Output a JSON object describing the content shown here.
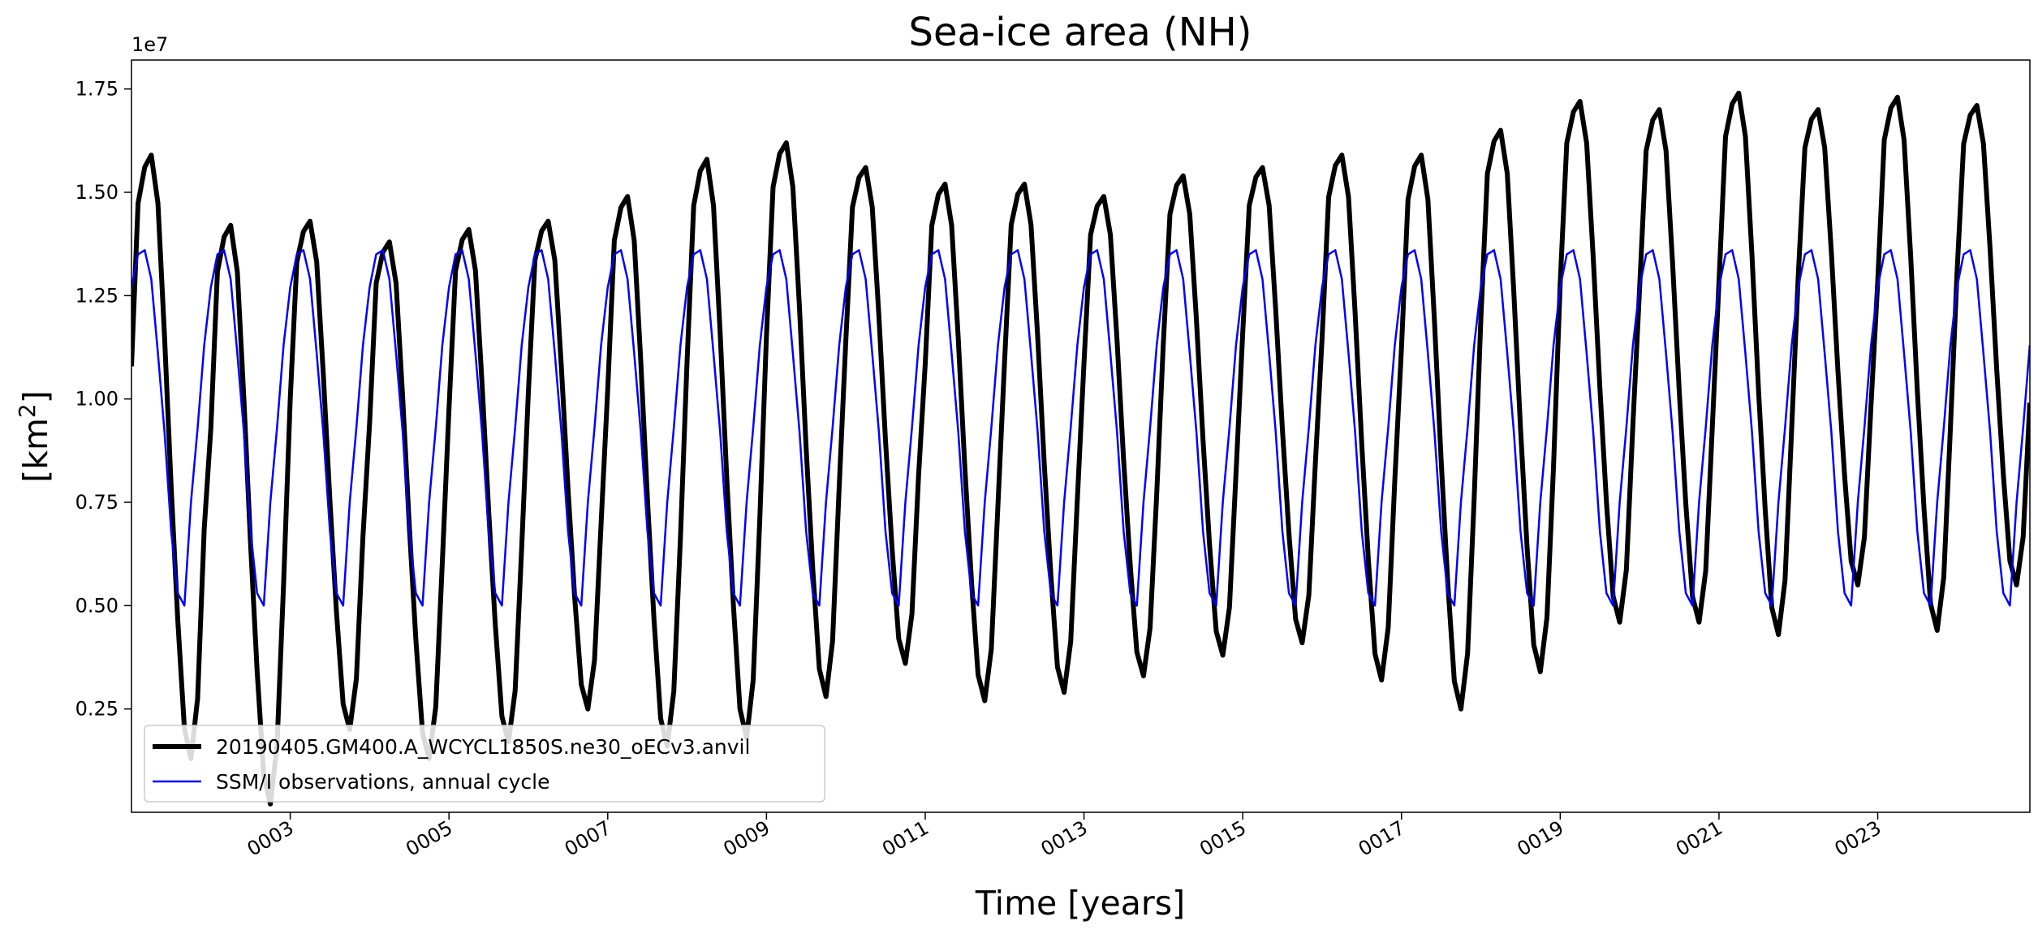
{
  "chart_data": {
    "type": "line",
    "title": "Sea-ice area (NH)",
    "xlabel": "Time [years]",
    "ylabel_main": "[km",
    "ylabel_sup": "2",
    "ylabel_close": "]",
    "y_offset_label": "1e7",
    "y_scale": 10000000,
    "xlim": [
      1.0,
      24.917
    ],
    "ylim": [
      0.0,
      1.82
    ],
    "grid": false,
    "legend_position": "lower-left",
    "x_ticks": [
      {
        "value": 3,
        "label": "0003"
      },
      {
        "value": 5,
        "label": "0005"
      },
      {
        "value": 7,
        "label": "0007"
      },
      {
        "value": 9,
        "label": "0009"
      },
      {
        "value": 11,
        "label": "0011"
      },
      {
        "value": 13,
        "label": "0013"
      },
      {
        "value": 15,
        "label": "0015"
      },
      {
        "value": 17,
        "label": "0017"
      },
      {
        "value": 19,
        "label": "0019"
      },
      {
        "value": 21,
        "label": "0021"
      },
      {
        "value": 23,
        "label": "0023"
      }
    ],
    "y_ticks": [
      {
        "value": 0.25,
        "label": "0.25"
      },
      {
        "value": 0.5,
        "label": "0.50"
      },
      {
        "value": 0.75,
        "label": "0.75"
      },
      {
        "value": 1.0,
        "label": "1.00"
      },
      {
        "value": 1.25,
        "label": "1.25"
      },
      {
        "value": 1.5,
        "label": "1.50"
      },
      {
        "value": 1.75,
        "label": "1.75"
      }
    ],
    "series": [
      {
        "name": "20190405.GM400.A_WCYCL1850S.ne30_oECv3.anvil",
        "color": "#000000",
        "x_start": 1.0,
        "x_step": 0.08333,
        "yearly_max": [
          1.59,
          1.42,
          1.43,
          1.38,
          1.41,
          1.43,
          1.49,
          1.58,
          1.62,
          1.56,
          1.52,
          1.52,
          1.49,
          1.54,
          1.56,
          1.59,
          1.59,
          1.65,
          1.72,
          1.7,
          1.74,
          1.7,
          1.73,
          1.71
        ],
        "yearly_min": [
          0.13,
          0.02,
          0.2,
          0.13,
          0.17,
          0.25,
          0.16,
          0.18,
          0.28,
          0.36,
          0.27,
          0.29,
          0.33,
          0.38,
          0.41,
          0.32,
          0.25,
          0.34,
          0.46,
          0.46,
          0.43,
          0.55,
          0.44,
          0.55
        ]
      },
      {
        "name": "SSM/I observations, annual cycle",
        "color": "#0000ff",
        "x_start": 1.0,
        "x_step": 0.08333,
        "monthly_cycle": [
          1.27,
          1.35,
          1.36,
          1.29,
          1.11,
          0.92,
          0.68,
          0.53,
          0.5,
          0.75,
          0.93,
          1.13
        ]
      }
    ]
  }
}
